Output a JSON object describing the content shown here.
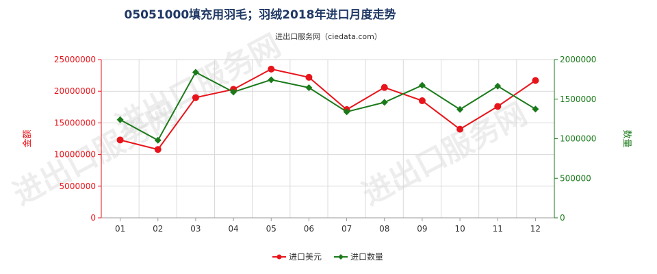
{
  "page": {
    "title": "05051000填充用羽毛；羽绒2018年进口月度走势",
    "subtitle": "进出口服务网（ciedata.com）",
    "watermark": "进出口服务网"
  },
  "colors": {
    "amount": "#e8141b",
    "quantity": "#1a7a1a",
    "grid": "#d9d9d9",
    "title": "#1f3864"
  },
  "chart_data": {
    "type": "line",
    "title": "05051000填充用羽毛；羽绒2018年进口月度走势",
    "categories": [
      "01",
      "02",
      "03",
      "04",
      "05",
      "06",
      "07",
      "08",
      "09",
      "10",
      "11",
      "12"
    ],
    "y_left": {
      "label": "金额",
      "ylim": [
        0,
        25000000
      ],
      "ticks": [
        "0",
        "5000000",
        "10000000",
        "15000000",
        "20000000",
        "25000000"
      ]
    },
    "y_right": {
      "label": "数量",
      "ylim": [
        0,
        2000000
      ],
      "ticks": [
        "0",
        "500000",
        "1000000",
        "1500000",
        "2000000"
      ]
    },
    "series": [
      {
        "name": "进口美元",
        "axis": "left",
        "color": "#e8141b",
        "values": [
          12300000,
          10800000,
          19000000,
          20300000,
          23500000,
          22200000,
          17100000,
          20600000,
          18500000,
          14000000,
          17600000,
          21700000
        ]
      },
      {
        "name": "进口数量",
        "axis": "right",
        "color": "#1a7a1a",
        "values": [
          1240000,
          980000,
          1840000,
          1590000,
          1745000,
          1645000,
          1340000,
          1460000,
          1675000,
          1370000,
          1665000,
          1375000
        ]
      }
    ],
    "grid": true,
    "legend_position": "bottom-center"
  }
}
